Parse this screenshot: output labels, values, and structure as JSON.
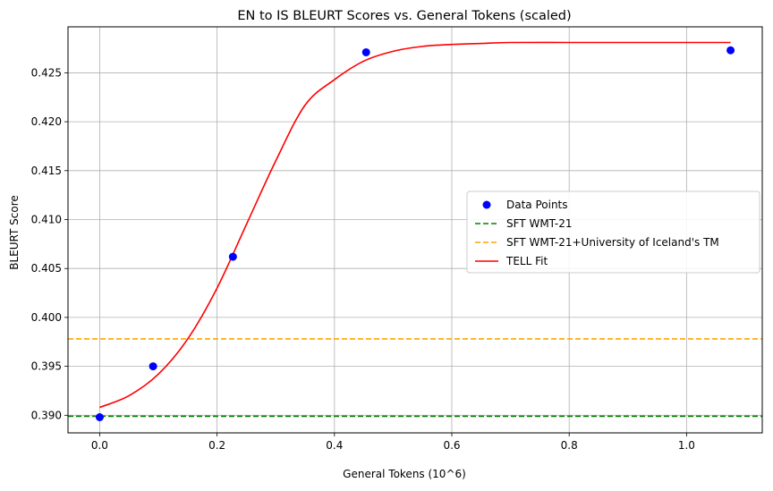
{
  "chart_data": {
    "type": "scatter",
    "title": "EN to IS BLEURT Scores vs. General Tokens (scaled)",
    "xlabel": "General Tokens (10^6)",
    "ylabel": "BLEURT Score",
    "xlim": [
      -0.054,
      1.129
    ],
    "ylim": [
      0.3882,
      0.4297
    ],
    "xticks": [
      0.0,
      0.2,
      0.4,
      0.6,
      0.8,
      1.0
    ],
    "xtick_labels": [
      "0.0",
      "0.2",
      "0.4",
      "0.6",
      "0.8",
      "1.0"
    ],
    "yticks": [
      0.39,
      0.395,
      0.4,
      0.405,
      0.41,
      0.415,
      0.42,
      0.425
    ],
    "ytick_labels": [
      "0.390",
      "0.395",
      "0.400",
      "0.405",
      "0.410",
      "0.415",
      "0.420",
      "0.425"
    ],
    "grid": true,
    "legend_position": "center-right",
    "points": {
      "name": "Data Points",
      "color": "#0000ff",
      "x": [
        0.0,
        0.091,
        0.227,
        0.454,
        1.075
      ],
      "y": [
        0.3898,
        0.395,
        0.4062,
        0.4271,
        0.4273
      ]
    },
    "hlines": [
      {
        "name": "SFT WMT-21",
        "y": 0.3899,
        "color": "#008000",
        "style": "dashed"
      },
      {
        "name": "SFT WMT-21+University of Iceland's TM",
        "y": 0.3978,
        "color": "#ffa500",
        "style": "dashed"
      }
    ],
    "fit": {
      "name": "TELL Fit",
      "color": "#ff0000",
      "x": [
        0.0,
        0.05,
        0.1,
        0.15,
        0.2,
        0.25,
        0.3,
        0.35,
        0.4,
        0.45,
        0.5,
        0.55,
        0.6,
        0.65,
        0.7,
        0.8,
        0.9,
        1.0,
        1.075
      ],
      "y": [
        0.3908,
        0.392,
        0.3942,
        0.3978,
        0.403,
        0.4095,
        0.416,
        0.4217,
        0.4243,
        0.4262,
        0.4272,
        0.4277,
        0.4279,
        0.428,
        0.4281,
        0.4281,
        0.4281,
        0.4281,
        0.4281
      ]
    }
  }
}
